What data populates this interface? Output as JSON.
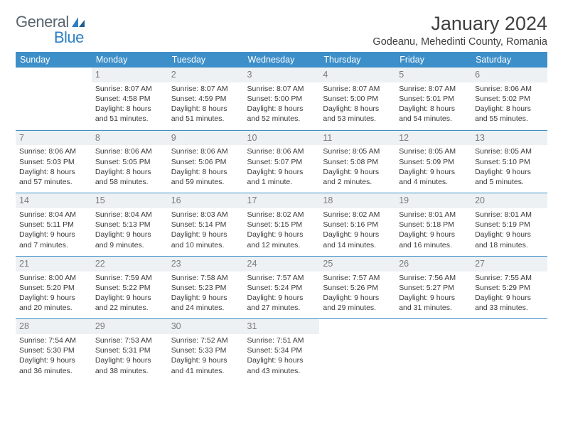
{
  "logo": {
    "text_general": "General",
    "text_blue": "Blue"
  },
  "header": {
    "title": "January 2024",
    "location": "Godeanu, Mehedinti County, Romania"
  },
  "colors": {
    "header_bg": "#3d8fc9",
    "header_text": "#ffffff",
    "daynum_bg": "#eef1f3",
    "daynum_text": "#7a7a7a",
    "border": "#3d8fc9",
    "body_text": "#3a3a3a"
  },
  "weekdays": [
    "Sunday",
    "Monday",
    "Tuesday",
    "Wednesday",
    "Thursday",
    "Friday",
    "Saturday"
  ],
  "weeks": [
    [
      null,
      {
        "n": "1",
        "sr": "Sunrise: 8:07 AM",
        "ss": "Sunset: 4:58 PM",
        "d1": "Daylight: 8 hours",
        "d2": "and 51 minutes."
      },
      {
        "n": "2",
        "sr": "Sunrise: 8:07 AM",
        "ss": "Sunset: 4:59 PM",
        "d1": "Daylight: 8 hours",
        "d2": "and 51 minutes."
      },
      {
        "n": "3",
        "sr": "Sunrise: 8:07 AM",
        "ss": "Sunset: 5:00 PM",
        "d1": "Daylight: 8 hours",
        "d2": "and 52 minutes."
      },
      {
        "n": "4",
        "sr": "Sunrise: 8:07 AM",
        "ss": "Sunset: 5:00 PM",
        "d1": "Daylight: 8 hours",
        "d2": "and 53 minutes."
      },
      {
        "n": "5",
        "sr": "Sunrise: 8:07 AM",
        "ss": "Sunset: 5:01 PM",
        "d1": "Daylight: 8 hours",
        "d2": "and 54 minutes."
      },
      {
        "n": "6",
        "sr": "Sunrise: 8:06 AM",
        "ss": "Sunset: 5:02 PM",
        "d1": "Daylight: 8 hours",
        "d2": "and 55 minutes."
      }
    ],
    [
      {
        "n": "7",
        "sr": "Sunrise: 8:06 AM",
        "ss": "Sunset: 5:03 PM",
        "d1": "Daylight: 8 hours",
        "d2": "and 57 minutes."
      },
      {
        "n": "8",
        "sr": "Sunrise: 8:06 AM",
        "ss": "Sunset: 5:05 PM",
        "d1": "Daylight: 8 hours",
        "d2": "and 58 minutes."
      },
      {
        "n": "9",
        "sr": "Sunrise: 8:06 AM",
        "ss": "Sunset: 5:06 PM",
        "d1": "Daylight: 8 hours",
        "d2": "and 59 minutes."
      },
      {
        "n": "10",
        "sr": "Sunrise: 8:06 AM",
        "ss": "Sunset: 5:07 PM",
        "d1": "Daylight: 9 hours",
        "d2": "and 1 minute."
      },
      {
        "n": "11",
        "sr": "Sunrise: 8:05 AM",
        "ss": "Sunset: 5:08 PM",
        "d1": "Daylight: 9 hours",
        "d2": "and 2 minutes."
      },
      {
        "n": "12",
        "sr": "Sunrise: 8:05 AM",
        "ss": "Sunset: 5:09 PM",
        "d1": "Daylight: 9 hours",
        "d2": "and 4 minutes."
      },
      {
        "n": "13",
        "sr": "Sunrise: 8:05 AM",
        "ss": "Sunset: 5:10 PM",
        "d1": "Daylight: 9 hours",
        "d2": "and 5 minutes."
      }
    ],
    [
      {
        "n": "14",
        "sr": "Sunrise: 8:04 AM",
        "ss": "Sunset: 5:11 PM",
        "d1": "Daylight: 9 hours",
        "d2": "and 7 minutes."
      },
      {
        "n": "15",
        "sr": "Sunrise: 8:04 AM",
        "ss": "Sunset: 5:13 PM",
        "d1": "Daylight: 9 hours",
        "d2": "and 9 minutes."
      },
      {
        "n": "16",
        "sr": "Sunrise: 8:03 AM",
        "ss": "Sunset: 5:14 PM",
        "d1": "Daylight: 9 hours",
        "d2": "and 10 minutes."
      },
      {
        "n": "17",
        "sr": "Sunrise: 8:02 AM",
        "ss": "Sunset: 5:15 PM",
        "d1": "Daylight: 9 hours",
        "d2": "and 12 minutes."
      },
      {
        "n": "18",
        "sr": "Sunrise: 8:02 AM",
        "ss": "Sunset: 5:16 PM",
        "d1": "Daylight: 9 hours",
        "d2": "and 14 minutes."
      },
      {
        "n": "19",
        "sr": "Sunrise: 8:01 AM",
        "ss": "Sunset: 5:18 PM",
        "d1": "Daylight: 9 hours",
        "d2": "and 16 minutes."
      },
      {
        "n": "20",
        "sr": "Sunrise: 8:01 AM",
        "ss": "Sunset: 5:19 PM",
        "d1": "Daylight: 9 hours",
        "d2": "and 18 minutes."
      }
    ],
    [
      {
        "n": "21",
        "sr": "Sunrise: 8:00 AM",
        "ss": "Sunset: 5:20 PM",
        "d1": "Daylight: 9 hours",
        "d2": "and 20 minutes."
      },
      {
        "n": "22",
        "sr": "Sunrise: 7:59 AM",
        "ss": "Sunset: 5:22 PM",
        "d1": "Daylight: 9 hours",
        "d2": "and 22 minutes."
      },
      {
        "n": "23",
        "sr": "Sunrise: 7:58 AM",
        "ss": "Sunset: 5:23 PM",
        "d1": "Daylight: 9 hours",
        "d2": "and 24 minutes."
      },
      {
        "n": "24",
        "sr": "Sunrise: 7:57 AM",
        "ss": "Sunset: 5:24 PM",
        "d1": "Daylight: 9 hours",
        "d2": "and 27 minutes."
      },
      {
        "n": "25",
        "sr": "Sunrise: 7:57 AM",
        "ss": "Sunset: 5:26 PM",
        "d1": "Daylight: 9 hours",
        "d2": "and 29 minutes."
      },
      {
        "n": "26",
        "sr": "Sunrise: 7:56 AM",
        "ss": "Sunset: 5:27 PM",
        "d1": "Daylight: 9 hours",
        "d2": "and 31 minutes."
      },
      {
        "n": "27",
        "sr": "Sunrise: 7:55 AM",
        "ss": "Sunset: 5:29 PM",
        "d1": "Daylight: 9 hours",
        "d2": "and 33 minutes."
      }
    ],
    [
      {
        "n": "28",
        "sr": "Sunrise: 7:54 AM",
        "ss": "Sunset: 5:30 PM",
        "d1": "Daylight: 9 hours",
        "d2": "and 36 minutes."
      },
      {
        "n": "29",
        "sr": "Sunrise: 7:53 AM",
        "ss": "Sunset: 5:31 PM",
        "d1": "Daylight: 9 hours",
        "d2": "and 38 minutes."
      },
      {
        "n": "30",
        "sr": "Sunrise: 7:52 AM",
        "ss": "Sunset: 5:33 PM",
        "d1": "Daylight: 9 hours",
        "d2": "and 41 minutes."
      },
      {
        "n": "31",
        "sr": "Sunrise: 7:51 AM",
        "ss": "Sunset: 5:34 PM",
        "d1": "Daylight: 9 hours",
        "d2": "and 43 minutes."
      },
      null,
      null,
      null
    ]
  ]
}
